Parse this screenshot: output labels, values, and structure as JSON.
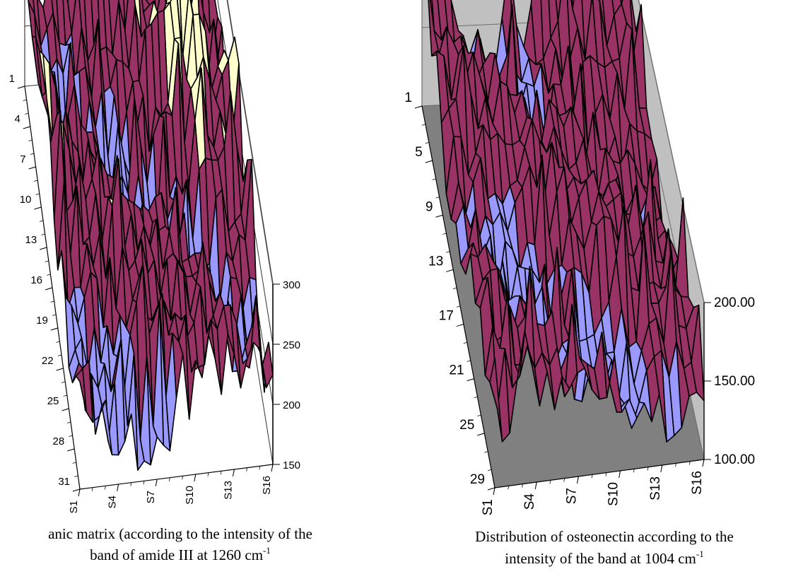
{
  "chart_data": [
    {
      "type": "surface",
      "caption": {
        "line1": "anic matrix (according to the intensity of the",
        "line2_text": "band of amide III at 1260 cm",
        "line2_sup": "-1"
      },
      "y_ticks": [
        "1",
        "4",
        "7",
        "10",
        "13",
        "16",
        "19",
        "22",
        "25",
        "28",
        "31"
      ],
      "x_ticks": [
        "S1",
        "S4",
        "S7",
        "S10",
        "S13",
        "S16"
      ],
      "z_ticks": [
        "150",
        "200",
        "250",
        "300"
      ],
      "zlim": [
        150,
        300
      ],
      "grid_points": [
        31,
        16
      ],
      "legend": "none",
      "colors": {
        "low": "#9999ff",
        "mid": "#993366",
        "high": "#ffffcc",
        "edge": "#000000"
      }
    },
    {
      "type": "surface",
      "caption": {
        "line1": "Distribution of osteonectin according to the",
        "line2_text": "intensity of the band at 1004 cm",
        "line2_sup": "-1"
      },
      "y_ticks": [
        "1",
        "5",
        "9",
        "13",
        "17",
        "21",
        "25",
        "29"
      ],
      "x_ticks": [
        "S1",
        "S4",
        "S7",
        "S10",
        "S13",
        "S16"
      ],
      "z_ticks": [
        "100.00",
        "150.00",
        "200.00"
      ],
      "zlim": [
        100,
        200
      ],
      "grid_points": [
        29,
        16
      ],
      "legend": "none",
      "colors": {
        "low": "#9999ff",
        "mid": "#993366",
        "wall": "#c0c0c0",
        "floor": "#808080",
        "edge": "#000000"
      }
    }
  ]
}
